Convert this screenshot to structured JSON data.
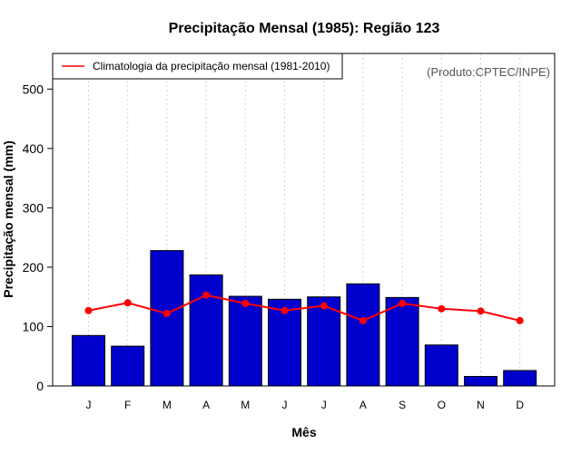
{
  "chart_data": {
    "type": "bar",
    "title": "Precipitação Mensal (1985): Região 123",
    "xlabel": "Mês",
    "ylabel": "Precipitação mensal (mm)",
    "ylim": [
      0,
      560
    ],
    "yticks": [
      0,
      100,
      200,
      300,
      400,
      500
    ],
    "categories": [
      "J",
      "F",
      "M",
      "A",
      "M",
      "J",
      "J",
      "A",
      "S",
      "O",
      "N",
      "D"
    ],
    "series": [
      {
        "name": "Precipitação mensal (1985)",
        "type": "bar",
        "color": "#0000CD",
        "values": [
          85,
          67,
          228,
          187,
          151,
          146,
          150,
          172,
          149,
          69,
          16,
          26
        ]
      },
      {
        "name": "Climatologia da precipitação mensal (1981-2010)",
        "type": "line",
        "color": "#FF0000",
        "values": [
          127,
          140,
          122,
          153,
          139,
          127,
          135,
          110,
          139,
          130,
          126,
          110
        ]
      }
    ],
    "legend": {
      "position": "top-left",
      "entries": [
        "Climatologia da precipitação mensal (1981-2010)"
      ]
    },
    "annotation": "(Produto:CPTEC/INPE)",
    "grid": "vertical dotted"
  }
}
